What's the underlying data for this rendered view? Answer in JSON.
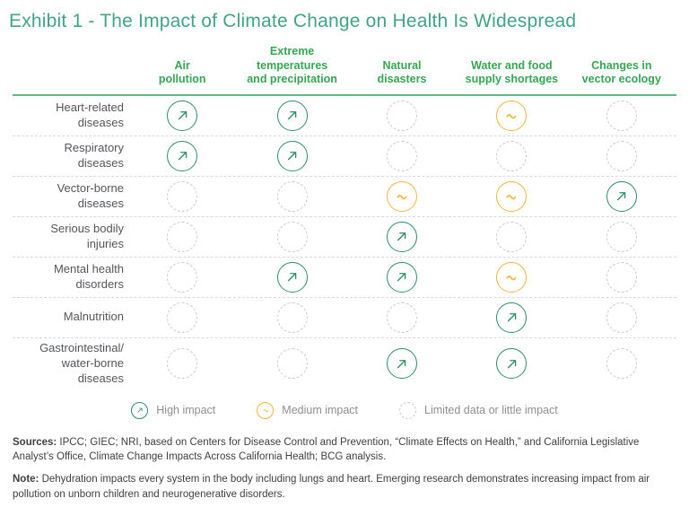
{
  "title": "Exhibit 1 - The Impact of Climate Change on Health Is Widespread",
  "chart_data": {
    "type": "heatmap",
    "title": "Exhibit 1 - The Impact of Climate Change on Health Is Widespread",
    "columns": [
      "Air pollution",
      "Extreme temperatures and precipitation",
      "Natural disasters",
      "Water and food supply shortages",
      "Changes in vector ecology"
    ],
    "rows": [
      "Heart-related diseases",
      "Respiratory diseases",
      "Vector-borne diseases",
      "Serious bodily injuries",
      "Mental health disorders",
      "Malnutrition",
      "Gastrointestinal/water-borne diseases"
    ],
    "values": [
      [
        "high",
        "high",
        "limited",
        "medium",
        "limited"
      ],
      [
        "high",
        "high",
        "limited",
        "limited",
        "limited"
      ],
      [
        "limited",
        "limited",
        "medium",
        "medium",
        "high"
      ],
      [
        "limited",
        "limited",
        "high",
        "limited",
        "limited"
      ],
      [
        "limited",
        "high",
        "high",
        "medium",
        "limited"
      ],
      [
        "limited",
        "limited",
        "limited",
        "high",
        "limited"
      ],
      [
        "limited",
        "limited",
        "high",
        "high",
        "limited"
      ]
    ],
    "value_labels": {
      "high": "High impact",
      "medium": "Medium impact",
      "limited": "Limited data or little impact"
    },
    "legend_position": "bottom"
  },
  "display": {
    "column_headers": [
      "Air\npollution",
      "Extreme\ntemperatures\nand precipitation",
      "Natural\ndisasters",
      "Water and food\nsupply shortages",
      "Changes in\nvector ecology"
    ],
    "row_labels": [
      "Heart-related\ndiseases",
      "Respiratory\ndiseases",
      "Vector-borne\ndiseases",
      "Serious bodily\ninjuries",
      "Mental health\ndisorders",
      "Malnutrition",
      "Gastrointestinal/\nwater-borne\ndiseases"
    ]
  },
  "legend": {
    "items": [
      {
        "level": "high",
        "label": "High impact"
      },
      {
        "level": "medium",
        "label": "Medium impact"
      },
      {
        "level": "limited",
        "label": "Limited data or little impact"
      }
    ]
  },
  "footer": {
    "sources_label": "Sources:",
    "sources_text": " IPCC; GIEC; NRI, based on Centers for Disease Control and Prevention, “Climate Effects on Health,” and California Legislative Analyst’s Office, Climate Change Impacts Across California Health; BCG analysis.",
    "note_label": "Note:",
    "note_text": " Dehydration impacts every system in the body including lungs and heart. Emerging research demonstrates increasing impact from air pollution on unborn children and neurogenerative disorders."
  },
  "colors": {
    "title": "#41a487",
    "column_header": "#35a652",
    "header_rule": "#5cbc82",
    "high": "#2d8d68",
    "medium": "#f0b63c",
    "limited": "#c9c9c9",
    "row_label": "#55565a",
    "legend_text": "#8f8f91",
    "footer_text": "#3f3f3f"
  },
  "icons": {
    "high": "arrow-up-right-circle-icon",
    "medium": "tilde-circle-icon",
    "limited": "dashed-circle-icon"
  }
}
